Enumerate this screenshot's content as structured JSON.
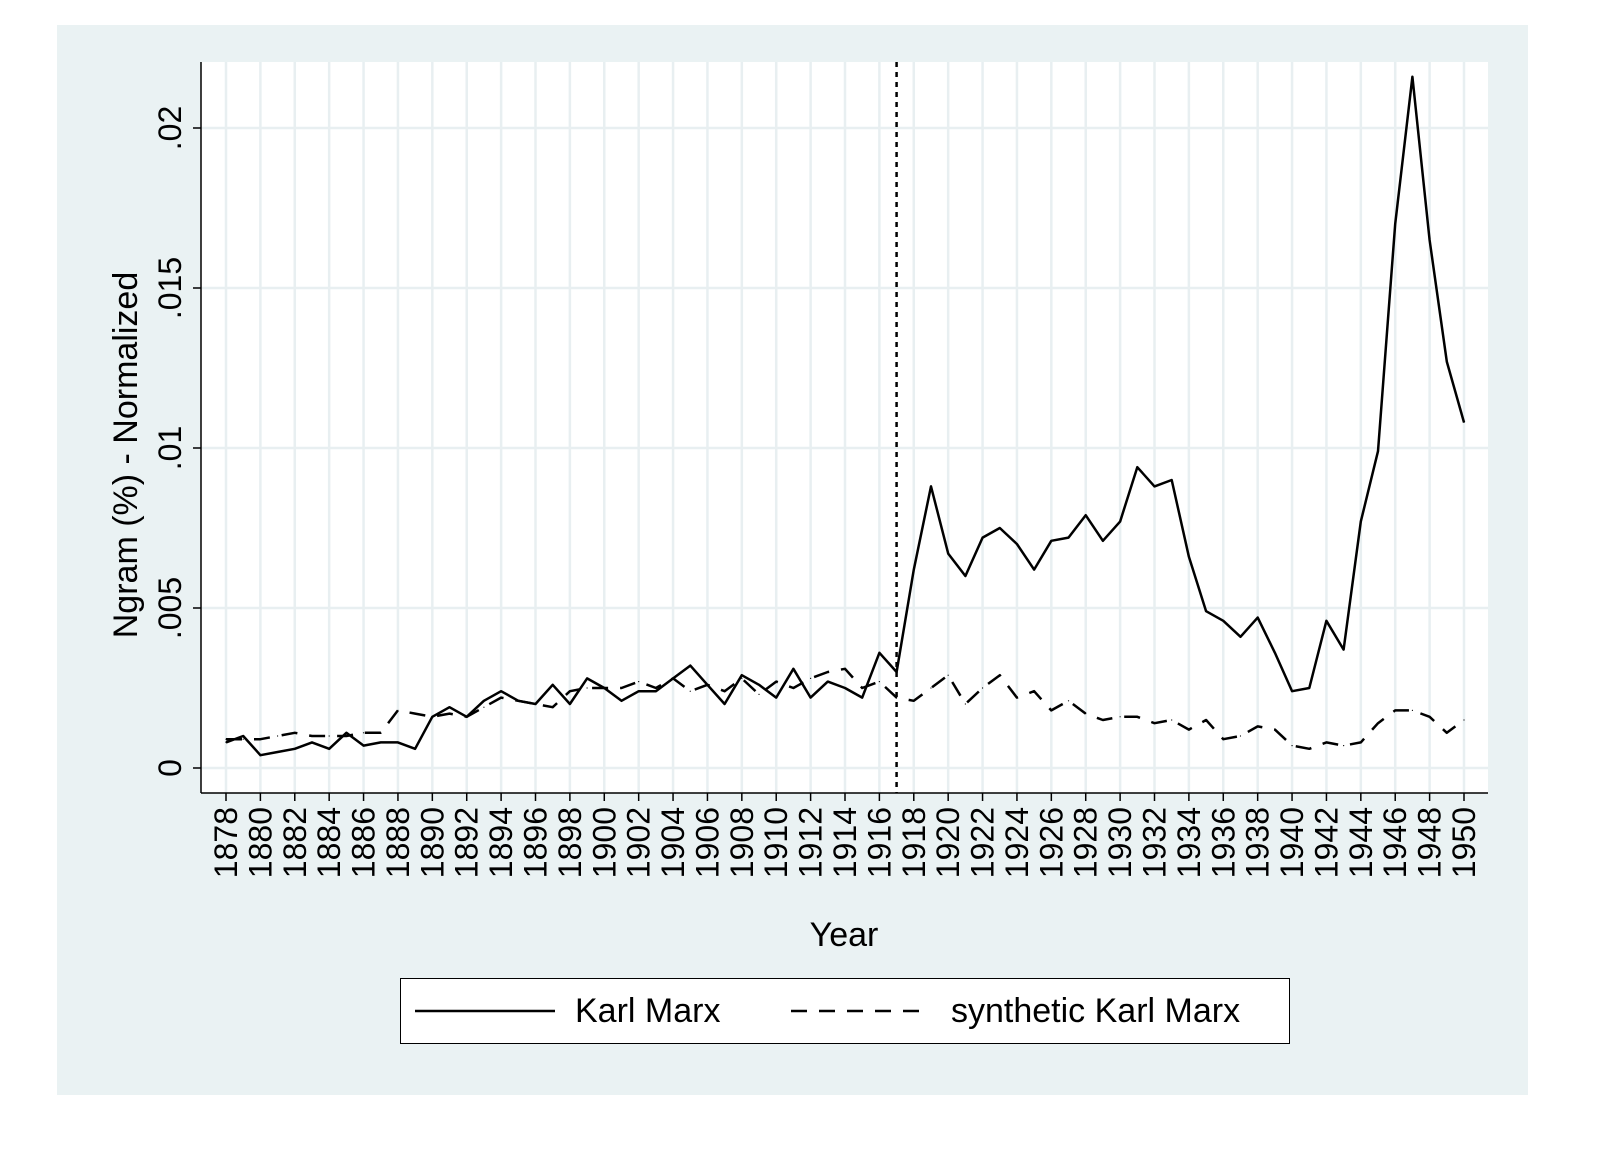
{
  "chart_data": {
    "type": "line",
    "xlabel": "Year",
    "ylabel": "Ngram (%) - Normalized",
    "xlim": [
      1878,
      1950
    ],
    "ylim": [
      0,
      0.022
    ],
    "x_tick_labels": [
      "1878",
      "1880",
      "1882",
      "1884",
      "1886",
      "1888",
      "1890",
      "1892",
      "1894",
      "1896",
      "1898",
      "1900",
      "1902",
      "1904",
      "1906",
      "1908",
      "1910",
      "1912",
      "1914",
      "1916",
      "1918",
      "1920",
      "1922",
      "1924",
      "1926",
      "1928",
      "1930",
      "1932",
      "1934",
      "1936",
      "1938",
      "1940",
      "1942",
      "1944",
      "1946",
      "1948",
      "1950"
    ],
    "y_ticks": [
      0,
      0.005,
      0.01,
      0.015,
      0.02
    ],
    "y_tick_labels": [
      "0",
      ".005",
      ".01",
      ".015",
      ".02"
    ],
    "grid": true,
    "vertical_reference_line": {
      "x": 1917,
      "style": "dotted"
    },
    "legend_position": "bottom",
    "x": [
      1878,
      1879,
      1880,
      1881,
      1882,
      1883,
      1884,
      1885,
      1886,
      1887,
      1888,
      1889,
      1890,
      1891,
      1892,
      1893,
      1894,
      1895,
      1896,
      1897,
      1898,
      1899,
      1900,
      1901,
      1902,
      1903,
      1904,
      1905,
      1906,
      1907,
      1908,
      1909,
      1910,
      1911,
      1912,
      1913,
      1914,
      1915,
      1916,
      1917,
      1918,
      1919,
      1920,
      1921,
      1922,
      1923,
      1924,
      1925,
      1926,
      1927,
      1928,
      1929,
      1930,
      1931,
      1932,
      1933,
      1934,
      1935,
      1936,
      1937,
      1938,
      1939,
      1940,
      1941,
      1942,
      1943,
      1944,
      1945,
      1946,
      1947,
      1948,
      1949,
      1950
    ],
    "series": [
      {
        "name": "Karl Marx",
        "style": "solid",
        "values": [
          0.0008,
          0.001,
          0.0004,
          0.0005,
          0.0006,
          0.0008,
          0.0006,
          0.0011,
          0.0007,
          0.0008,
          0.0008,
          0.0006,
          0.0016,
          0.0019,
          0.0016,
          0.0021,
          0.0024,
          0.0021,
          0.002,
          0.0026,
          0.002,
          0.0028,
          0.0025,
          0.0021,
          0.0024,
          0.0024,
          0.0028,
          0.0032,
          0.0026,
          0.002,
          0.0029,
          0.0026,
          0.0022,
          0.0031,
          0.0022,
          0.0027,
          0.0025,
          0.0022,
          0.0036,
          0.003,
          0.0062,
          0.0088,
          0.0067,
          0.006,
          0.0072,
          0.0075,
          0.007,
          0.0062,
          0.0071,
          0.0072,
          0.0079,
          0.0071,
          0.0077,
          0.0094,
          0.0088,
          0.009,
          0.0066,
          0.0049,
          0.0046,
          0.0041,
          0.0047,
          0.0036,
          0.0024,
          0.0025,
          0.0046,
          0.0037,
          0.0077,
          0.0099,
          0.017,
          0.0216,
          0.0165,
          0.0127,
          0.0108
        ]
      },
      {
        "name": "synthetic Karl Marx",
        "style": "dashed",
        "values": [
          0.0009,
          0.0009,
          0.0009,
          0.001,
          0.0011,
          0.001,
          0.001,
          0.001,
          0.0011,
          0.0011,
          0.0018,
          0.0017,
          0.0016,
          0.0017,
          0.0016,
          0.0019,
          0.0022,
          0.0021,
          0.002,
          0.0019,
          0.0024,
          0.0025,
          0.0025,
          0.0025,
          0.0027,
          0.0025,
          0.0028,
          0.0024,
          0.0026,
          0.0024,
          0.0028,
          0.0023,
          0.0027,
          0.0025,
          0.0028,
          0.003,
          0.0031,
          0.0025,
          0.0027,
          0.0022,
          0.0021,
          0.0025,
          0.0029,
          0.002,
          0.0025,
          0.0029,
          0.0022,
          0.0024,
          0.0018,
          0.0021,
          0.0017,
          0.0015,
          0.0016,
          0.0016,
          0.0014,
          0.0015,
          0.0012,
          0.0015,
          0.0009,
          0.001,
          0.0013,
          0.0012,
          0.0007,
          0.0006,
          0.0008,
          0.0007,
          0.0008,
          0.0014,
          0.0018,
          0.0018,
          0.0016,
          0.0011,
          0.0015
        ]
      }
    ]
  }
}
